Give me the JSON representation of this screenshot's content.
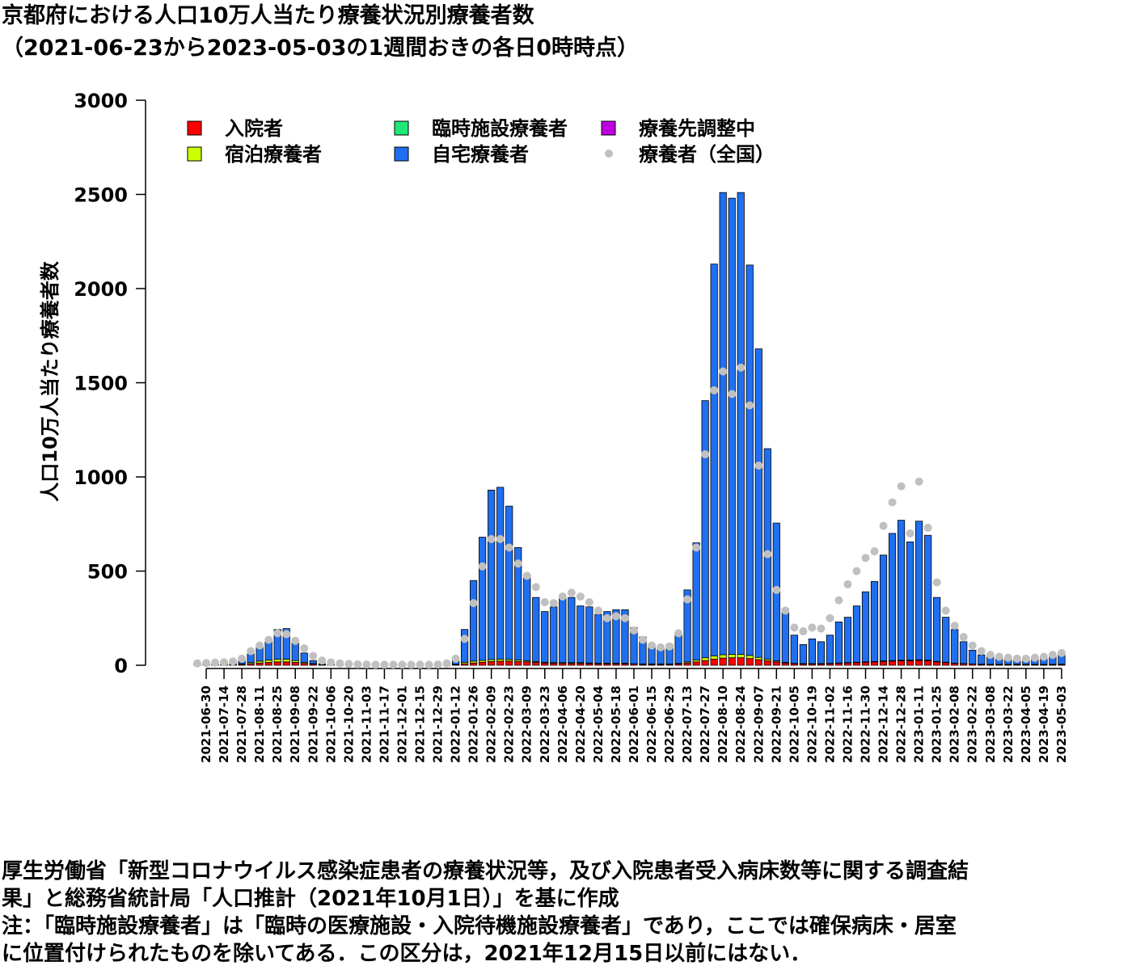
{
  "chart_data": {
    "type": "bar",
    "stacked": true,
    "title": "京都府における人口10万人当たり療養状況別療養者数",
    "subtitle": "（2021-06-23から2023-05-03の1週間おきの各日0時時点）",
    "y_label": "人口10万人当たり療養者数",
    "ylim": [
      0,
      3000
    ],
    "yticks": [
      0,
      500,
      1000,
      1500,
      2000,
      2500,
      3000
    ],
    "grid": false,
    "legend": "top",
    "categories": [
      null,
      "2021-06-30",
      null,
      "2021-07-14",
      null,
      "2021-07-28",
      null,
      "2021-08-11",
      null,
      "2021-08-25",
      null,
      "2021-09-08",
      null,
      "2021-09-22",
      null,
      "2021-10-06",
      null,
      "2021-10-20",
      null,
      "2021-11-03",
      null,
      "2021-11-17",
      null,
      "2021-12-01",
      null,
      "2021-12-15",
      null,
      "2021-12-29",
      null,
      "2022-01-12",
      null,
      "2022-01-26",
      null,
      "2022-02-09",
      null,
      "2022-02-23",
      null,
      "2022-03-09",
      null,
      "2022-03-23",
      null,
      "2022-04-06",
      null,
      "2022-04-20",
      null,
      "2022-05-04",
      null,
      "2022-05-18",
      null,
      "2022-06-01",
      null,
      "2022-06-15",
      null,
      "2022-06-29",
      null,
      "2022-07-13",
      null,
      "2022-07-27",
      null,
      "2022-08-10",
      null,
      "2022-08-24",
      null,
      "2022-09-07",
      null,
      "2022-09-21",
      null,
      "2022-10-05",
      null,
      "2022-10-19",
      null,
      "2022-11-02",
      null,
      "2022-11-16",
      null,
      "2022-11-30",
      null,
      "2022-12-14",
      null,
      "2022-12-28",
      null,
      "2023-01-11",
      null,
      "2023-01-25",
      null,
      "2023-02-08",
      null,
      "2023-02-22",
      null,
      "2023-03-08",
      null,
      "2023-03-22",
      null,
      "2023-04-05",
      null,
      "2023-04-19",
      null,
      "2023-05-03"
    ],
    "series": [
      {
        "name": "入院者",
        "color": "#ff0000",
        "values": [
          3,
          3,
          3,
          3,
          3,
          5,
          8,
          12,
          15,
          18,
          18,
          15,
          10,
          6,
          3,
          1,
          1,
          1,
          1,
          1,
          1,
          1,
          1,
          1,
          1,
          1,
          1,
          1,
          1,
          3,
          8,
          12,
          16,
          20,
          22,
          22,
          20,
          18,
          15,
          12,
          10,
          10,
          10,
          10,
          9,
          8,
          8,
          8,
          8,
          6,
          5,
          5,
          5,
          5,
          7,
          12,
          18,
          25,
          32,
          38,
          40,
          40,
          36,
          30,
          24,
          18,
          12,
          8,
          7,
          7,
          7,
          8,
          10,
          12,
          14,
          16,
          18,
          20,
          22,
          24,
          24,
          26,
          24,
          18,
          14,
          10,
          8,
          6,
          5,
          4,
          4,
          4,
          4,
          4,
          4,
          4,
          4,
          5
        ]
      },
      {
        "name": "宿泊療養者",
        "color": "#ccff00",
        "values": [
          1,
          1,
          1,
          1,
          1,
          3,
          6,
          10,
          12,
          14,
          14,
          10,
          6,
          3,
          1,
          0,
          0,
          0,
          0,
          0,
          0,
          0,
          0,
          0,
          0,
          0,
          0,
          0,
          0,
          2,
          8,
          10,
          10,
          10,
          10,
          9,
          8,
          6,
          5,
          4,
          4,
          4,
          4,
          4,
          3,
          3,
          3,
          3,
          3,
          2,
          2,
          2,
          2,
          2,
          3,
          6,
          10,
          15,
          18,
          18,
          18,
          18,
          16,
          12,
          8,
          5,
          3,
          2,
          2,
          2,
          2,
          2,
          2,
          2,
          2,
          2,
          2,
          3,
          3,
          3,
          3,
          3,
          3,
          2,
          2,
          1,
          1,
          1,
          1,
          1,
          1,
          1,
          1,
          1,
          1,
          1,
          1,
          1
        ]
      },
      {
        "name": "臨時施設療養者",
        "color": "#1ee878",
        "values": [
          null,
          null,
          null,
          null,
          null,
          null,
          null,
          null,
          null,
          null,
          null,
          null,
          null,
          null,
          null,
          null,
          null,
          null,
          null,
          null,
          null,
          null,
          null,
          null,
          null,
          null,
          0,
          0,
          0,
          0,
          0,
          0,
          0,
          0,
          0,
          0,
          0,
          0,
          0,
          0,
          0,
          0,
          0,
          0,
          0,
          0,
          0,
          0,
          0,
          0,
          0,
          0,
          0,
          0,
          0,
          0,
          0,
          0,
          0,
          0,
          0,
          0,
          0,
          0,
          0,
          0,
          0,
          0,
          0,
          0,
          0,
          0,
          0,
          0,
          0,
          0,
          0,
          0,
          0,
          0,
          0,
          0,
          0,
          0,
          0,
          0,
          0,
          0,
          0,
          0,
          0,
          0,
          0,
          0,
          0,
          0,
          0,
          0
        ]
      },
      {
        "name": "自宅療養者",
        "color": "#1f6ff0",
        "values": [
          2,
          2,
          2,
          4,
          8,
          22,
          46,
          73,
          103,
          158,
          163,
          95,
          49,
          16,
          4,
          2,
          2,
          2,
          2,
          2,
          2,
          2,
          2,
          2,
          2,
          2,
          2,
          2,
          2,
          20,
          174,
          428,
          654,
          900,
          913,
          814,
          597,
          451,
          340,
          269,
          296,
          341,
          346,
          301,
          298,
          259,
          274,
          284,
          284,
          192,
          143,
          103,
          88,
          103,
          150,
          382,
          622,
          1365,
          2080,
          2454,
          2422,
          2452,
          2073,
          1638,
          1118,
          732,
          285,
          150,
          101,
          131,
          116,
          150,
          218,
          241,
          299,
          372,
          425,
          562,
          675,
          743,
          628,
          736,
          663,
          340,
          239,
          179,
          116,
          73,
          49,
          40,
          30,
          25,
          25,
          25,
          30,
          35,
          45,
          54
        ]
      },
      {
        "name": "療養先調整中",
        "color": "#c000e0",
        "values": [
          0,
          0,
          0,
          0,
          0,
          0,
          0,
          0,
          0,
          0,
          0,
          0,
          0,
          0,
          0,
          0,
          0,
          0,
          0,
          0,
          0,
          0,
          0,
          0,
          0,
          0,
          0,
          0,
          0,
          0,
          0,
          0,
          0,
          0,
          0,
          0,
          0,
          0,
          0,
          0,
          0,
          0,
          0,
          0,
          0,
          0,
          0,
          0,
          0,
          0,
          0,
          0,
          0,
          0,
          0,
          0,
          0,
          0,
          0,
          0,
          0,
          0,
          0,
          0,
          0,
          0,
          0,
          0,
          0,
          0,
          0,
          0,
          0,
          0,
          0,
          0,
          0,
          0,
          0,
          0,
          0,
          0,
          0,
          0,
          0,
          0,
          0,
          0,
          0,
          0,
          0,
          0,
          0,
          0,
          0,
          0,
          0,
          0
        ]
      },
      {
        "name": "療養者（全国）",
        "color": "#c0c0c0",
        "type": "point",
        "values": [
          10,
          12,
          14,
          16,
          20,
          35,
          75,
          105,
          135,
          170,
          165,
          130,
          90,
          50,
          25,
          15,
          10,
          7,
          5,
          4,
          3,
          3,
          3,
          3,
          3,
          3,
          3,
          4,
          10,
          35,
          140,
          330,
          525,
          670,
          670,
          625,
          540,
          475,
          415,
          335,
          330,
          365,
          385,
          365,
          335,
          290,
          250,
          260,
          250,
          185,
          135,
          105,
          95,
          100,
          170,
          350,
          625,
          1120,
          1460,
          1560,
          1440,
          1580,
          1380,
          1060,
          590,
          400,
          290,
          200,
          180,
          200,
          195,
          250,
          345,
          430,
          500,
          570,
          605,
          740,
          865,
          950,
          700,
          975,
          730,
          440,
          290,
          210,
          150,
          105,
          75,
          55,
          45,
          40,
          35,
          35,
          40,
          45,
          55,
          65
        ]
      }
    ],
    "notes": [
      "厚生労働省「新型コロナウイルス感染症患者の療養状況等，及び入院患者受入病床数等に関する調査結",
      "果」と総務省統計局「人口推計（2021年10月1日）」を基に作成",
      "注：「臨時施設療養者」は「臨時の医療施設・入院待機施設療養者」であり，ここでは確保病床・居室",
      "に位置付けられたものを除いてある．この区分は，2021年12月15日以前にはない．"
    ]
  }
}
